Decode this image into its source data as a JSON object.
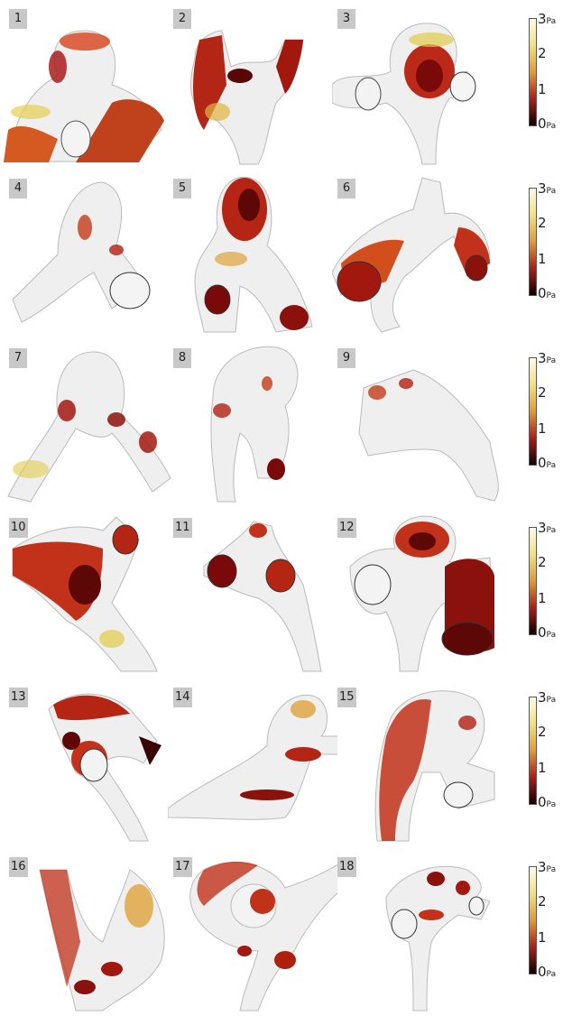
{
  "panels": [
    {
      "label": "1"
    },
    {
      "label": "2"
    },
    {
      "label": "3"
    },
    {
      "label": "4"
    },
    {
      "label": "5"
    },
    {
      "label": "6"
    },
    {
      "label": "7"
    },
    {
      "label": "8"
    },
    {
      "label": "9"
    },
    {
      "label": "10"
    },
    {
      "label": "11"
    },
    {
      "label": "12"
    },
    {
      "label": "13"
    },
    {
      "label": "14"
    },
    {
      "label": "15"
    },
    {
      "label": "16"
    },
    {
      "label": "17"
    },
    {
      "label": "18"
    }
  ],
  "colorbar": {
    "ticks": [
      "3",
      "2",
      "1",
      "0"
    ],
    "unit": "Pa",
    "colors": [
      "#fffbe6",
      "#f1e27a",
      "#e39a2e",
      "#b01e16",
      "#120000"
    ]
  }
}
